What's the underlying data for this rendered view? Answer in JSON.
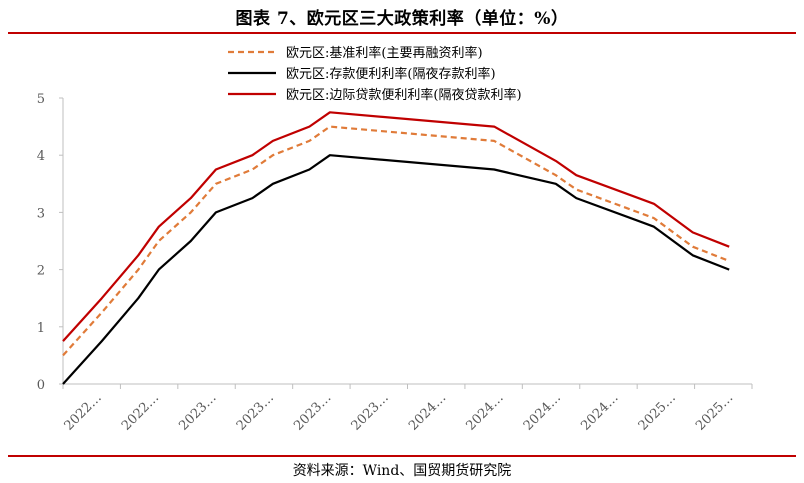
{
  "title": "图表 7、欧元区三大政策利率（单位：%）",
  "source": "资料来源：Wind、国贸期货研究院",
  "chart_data": {
    "type": "line",
    "title": "图表 7、欧元区三大政策利率（单位：%）",
    "xlabel": "",
    "ylabel": "",
    "ylim": [
      0,
      5
    ],
    "yticks": [
      "0",
      "1",
      "2",
      "3",
      "4",
      "5"
    ],
    "categories": [
      "2022…",
      "2022…",
      "2023…",
      "2023…",
      "2023…",
      "2023…",
      "2024…",
      "2024…",
      "2024…",
      "2024…",
      "2025…",
      "2025…"
    ],
    "grid": false,
    "legend": "top-center",
    "series": [
      {
        "name": "欧元区:基准利率(主要再融资利率)",
        "color": "#E07B39",
        "style": "dashed",
        "points": [
          [
            2022.54,
            0.5
          ],
          [
            2022.71,
            1.25
          ],
          [
            2022.87,
            2.0
          ],
          [
            2022.96,
            2.5
          ],
          [
            2023.1,
            3.0
          ],
          [
            2023.21,
            3.5
          ],
          [
            2023.37,
            3.75
          ],
          [
            2023.46,
            4.0
          ],
          [
            2023.62,
            4.25
          ],
          [
            2023.71,
            4.5
          ],
          [
            2024.43,
            4.25
          ],
          [
            2024.7,
            3.65
          ],
          [
            2024.79,
            3.4
          ],
          [
            2025.13,
            2.9
          ],
          [
            2025.3,
            2.4
          ],
          [
            2025.46,
            2.15
          ]
        ]
      },
      {
        "name": "欧元区:存款便利利率(隔夜存款利率)",
        "color": "#000000",
        "style": "solid",
        "points": [
          [
            2022.54,
            0.0
          ],
          [
            2022.71,
            0.75
          ],
          [
            2022.87,
            1.5
          ],
          [
            2022.96,
            2.0
          ],
          [
            2023.1,
            2.5
          ],
          [
            2023.21,
            3.0
          ],
          [
            2023.37,
            3.25
          ],
          [
            2023.46,
            3.5
          ],
          [
            2023.62,
            3.75
          ],
          [
            2023.71,
            4.0
          ],
          [
            2024.43,
            3.75
          ],
          [
            2024.7,
            3.5
          ],
          [
            2024.79,
            3.25
          ],
          [
            2025.13,
            2.75
          ],
          [
            2025.3,
            2.25
          ],
          [
            2025.46,
            2.0
          ]
        ]
      },
      {
        "name": "欧元区:边际贷款便利利率(隔夜贷款利率)",
        "color": "#C00000",
        "style": "solid",
        "points": [
          [
            2022.54,
            0.75
          ],
          [
            2022.71,
            1.5
          ],
          [
            2022.87,
            2.25
          ],
          [
            2022.96,
            2.75
          ],
          [
            2023.1,
            3.25
          ],
          [
            2023.21,
            3.75
          ],
          [
            2023.37,
            4.0
          ],
          [
            2023.46,
            4.25
          ],
          [
            2023.62,
            4.5
          ],
          [
            2023.71,
            4.75
          ],
          [
            2024.43,
            4.5
          ],
          [
            2024.7,
            3.9
          ],
          [
            2024.79,
            3.65
          ],
          [
            2025.13,
            3.15
          ],
          [
            2025.3,
            2.65
          ],
          [
            2025.46,
            2.4
          ]
        ]
      }
    ]
  }
}
